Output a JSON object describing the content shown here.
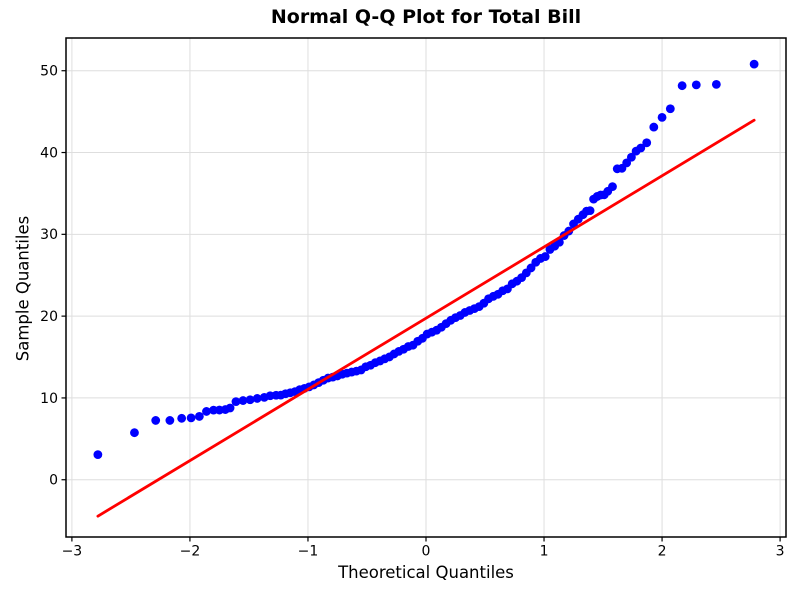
{
  "title": "Normal Q-Q Plot for Total Bill",
  "chart_data": {
    "type": "scatter",
    "title": "Normal Q-Q Plot for Total Bill",
    "xlabel": "Theoretical Quantiles",
    "ylabel": "Sample Quantiles",
    "xlim": [
      -3.05,
      3.05
    ],
    "ylim": [
      -7,
      54
    ],
    "x_ticks": [
      -3,
      -2,
      -1,
      0,
      1,
      2,
      3
    ],
    "y_ticks": [
      0,
      10,
      20,
      30,
      40,
      50
    ],
    "grid": true,
    "legend": "none",
    "colors": {
      "scatter": "#0000ff",
      "line": "#ff0000",
      "grid": "#dedede",
      "spine": "#000000",
      "tick": "#000000",
      "background": "#ffffff"
    },
    "marker_radius": 4.4,
    "line_width": 2.8,
    "series": [
      {
        "name": "sample-vs-theoretical-quantiles",
        "kind": "scatter",
        "points": [
          [
            -2.78,
            3.07
          ],
          [
            -2.47,
            5.75
          ],
          [
            -2.29,
            7.25
          ],
          [
            -2.17,
            7.25
          ],
          [
            -2.07,
            7.51
          ],
          [
            -1.99,
            7.56
          ],
          [
            -1.92,
            7.74
          ],
          [
            -1.86,
            8.35
          ],
          [
            -1.8,
            8.51
          ],
          [
            -1.75,
            8.52
          ],
          [
            -1.7,
            8.58
          ],
          [
            -1.66,
            8.77
          ],
          [
            -1.61,
            9.55
          ],
          [
            -1.55,
            9.68
          ],
          [
            -1.49,
            9.78
          ],
          [
            -1.43,
            9.94
          ],
          [
            -1.37,
            10.07
          ],
          [
            -1.32,
            10.27
          ],
          [
            -1.27,
            10.33
          ],
          [
            -1.23,
            10.34
          ],
          [
            -1.19,
            10.51
          ],
          [
            -1.15,
            10.63
          ],
          [
            -1.11,
            10.77
          ],
          [
            -1.07,
            11.02
          ],
          [
            -1.03,
            11.17
          ],
          [
            -0.99,
            11.35
          ],
          [
            -0.95,
            11.59
          ],
          [
            -0.91,
            11.87
          ],
          [
            -0.87,
            12.16
          ],
          [
            -0.83,
            12.43
          ],
          [
            -0.79,
            12.54
          ],
          [
            -0.75,
            12.69
          ],
          [
            -0.71,
            12.9
          ],
          [
            -0.67,
            13.03
          ],
          [
            -0.63,
            13.16
          ],
          [
            -0.59,
            13.28
          ],
          [
            -0.55,
            13.42
          ],
          [
            -0.51,
            13.81
          ],
          [
            -0.47,
            14.0
          ],
          [
            -0.43,
            14.31
          ],
          [
            -0.39,
            14.52
          ],
          [
            -0.35,
            14.78
          ],
          [
            -0.31,
            15.01
          ],
          [
            -0.27,
            15.38
          ],
          [
            -0.23,
            15.69
          ],
          [
            -0.19,
            15.95
          ],
          [
            -0.15,
            16.29
          ],
          [
            -0.11,
            16.45
          ],
          [
            -0.07,
            16.93
          ],
          [
            -0.03,
            17.29
          ],
          [
            0.01,
            17.81
          ],
          [
            0.05,
            18.04
          ],
          [
            0.09,
            18.28
          ],
          [
            0.13,
            18.64
          ],
          [
            0.17,
            19.08
          ],
          [
            0.21,
            19.49
          ],
          [
            0.25,
            19.82
          ],
          [
            0.29,
            20.08
          ],
          [
            0.33,
            20.45
          ],
          [
            0.37,
            20.69
          ],
          [
            0.41,
            20.92
          ],
          [
            0.45,
            21.16
          ],
          [
            0.49,
            21.58
          ],
          [
            0.53,
            22.12
          ],
          [
            0.57,
            22.42
          ],
          [
            0.61,
            22.67
          ],
          [
            0.65,
            23.1
          ],
          [
            0.69,
            23.33
          ],
          [
            0.73,
            23.95
          ],
          [
            0.77,
            24.27
          ],
          [
            0.81,
            24.71
          ],
          [
            0.85,
            25.29
          ],
          [
            0.89,
            25.89
          ],
          [
            0.93,
            26.59
          ],
          [
            0.97,
            27.05
          ],
          [
            1.01,
            27.28
          ],
          [
            1.05,
            28.15
          ],
          [
            1.09,
            28.55
          ],
          [
            1.13,
            29.03
          ],
          [
            1.17,
            29.85
          ],
          [
            1.21,
            30.4
          ],
          [
            1.25,
            31.27
          ],
          [
            1.29,
            31.85
          ],
          [
            1.33,
            32.4
          ],
          [
            1.36,
            32.83
          ],
          [
            1.39,
            32.9
          ],
          [
            1.42,
            34.3
          ],
          [
            1.45,
            34.63
          ],
          [
            1.48,
            34.81
          ],
          [
            1.51,
            34.83
          ],
          [
            1.54,
            35.26
          ],
          [
            1.58,
            35.83
          ],
          [
            1.62,
            38.01
          ],
          [
            1.66,
            38.07
          ],
          [
            1.7,
            38.73
          ],
          [
            1.74,
            39.42
          ],
          [
            1.78,
            40.17
          ],
          [
            1.82,
            40.55
          ],
          [
            1.87,
            41.19
          ],
          [
            1.93,
            43.11
          ],
          [
            2.0,
            44.3
          ],
          [
            2.07,
            45.35
          ],
          [
            2.17,
            48.17
          ],
          [
            2.29,
            48.27
          ],
          [
            2.46,
            48.33
          ],
          [
            2.78,
            50.81
          ]
        ]
      },
      {
        "name": "normal-reference-line",
        "kind": "line",
        "points": [
          [
            -2.78,
            -4.45
          ],
          [
            2.78,
            43.95
          ]
        ]
      }
    ]
  }
}
